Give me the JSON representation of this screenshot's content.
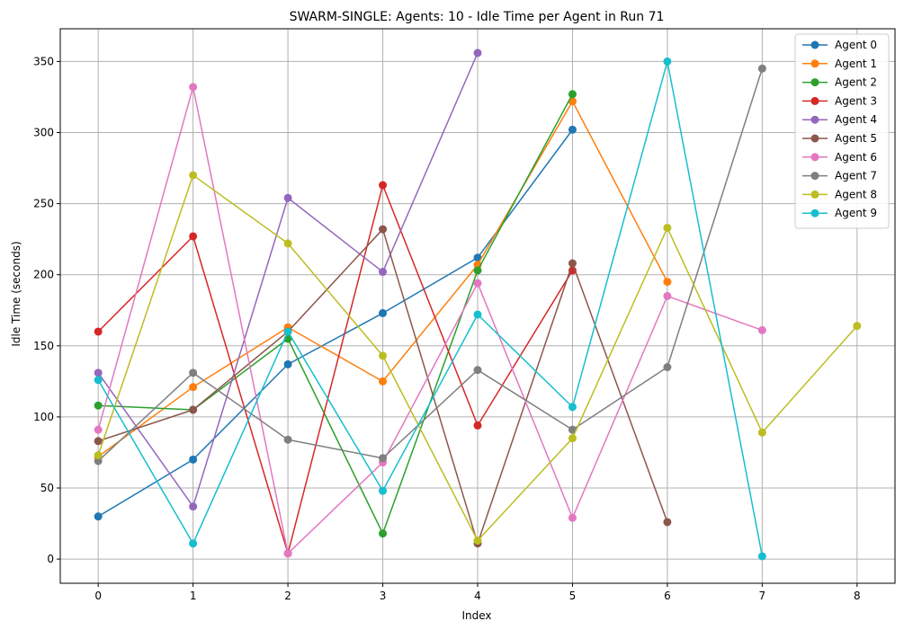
{
  "chart_data": {
    "type": "line",
    "title": "SWARM-SINGLE: Agents: 10 - Idle Time per Agent in Run 71",
    "xlabel": "Index",
    "ylabel": "Idle Time (seconds)",
    "xlim": [
      -0.4,
      8.4
    ],
    "ylim": [
      -17,
      373
    ],
    "xticks": [
      0,
      1,
      2,
      3,
      4,
      5,
      6,
      7,
      8
    ],
    "yticks": [
      0,
      50,
      100,
      150,
      200,
      250,
      300,
      350
    ],
    "grid": true,
    "legend_position": "top-right",
    "series": [
      {
        "name": "Agent 0",
        "color": "#1f77b4",
        "values": [
          30,
          70,
          137,
          173,
          212,
          302
        ]
      },
      {
        "name": "Agent 1",
        "color": "#ff7f0e",
        "values": [
          72,
          121,
          163,
          125,
          207,
          322,
          195
        ]
      },
      {
        "name": "Agent 2",
        "color": "#2ca02c",
        "values": [
          108,
          105,
          155,
          18,
          203,
          327
        ]
      },
      {
        "name": "Agent 3",
        "color": "#d62728",
        "values": [
          160,
          227,
          4,
          263,
          94,
          203
        ]
      },
      {
        "name": "Agent 4",
        "color": "#9467bd",
        "values": [
          131,
          37,
          254,
          202,
          356
        ]
      },
      {
        "name": "Agent 5",
        "color": "#8c564b",
        "values": [
          83,
          105,
          160,
          232,
          11,
          208,
          26
        ]
      },
      {
        "name": "Agent 6",
        "color": "#e377c2",
        "values": [
          91,
          332,
          4,
          68,
          194,
          29,
          185,
          161
        ]
      },
      {
        "name": "Agent 7",
        "color": "#7f7f7f",
        "values": [
          69,
          131,
          84,
          71,
          133,
          91,
          135,
          345
        ]
      },
      {
        "name": "Agent 8",
        "color": "#bcbd22",
        "values": [
          73,
          270,
          222,
          143,
          13,
          85,
          233,
          89,
          164
        ]
      },
      {
        "name": "Agent 9",
        "color": "#17becf",
        "values": [
          126,
          11,
          160,
          48,
          172,
          107,
          350,
          2
        ]
      }
    ]
  }
}
